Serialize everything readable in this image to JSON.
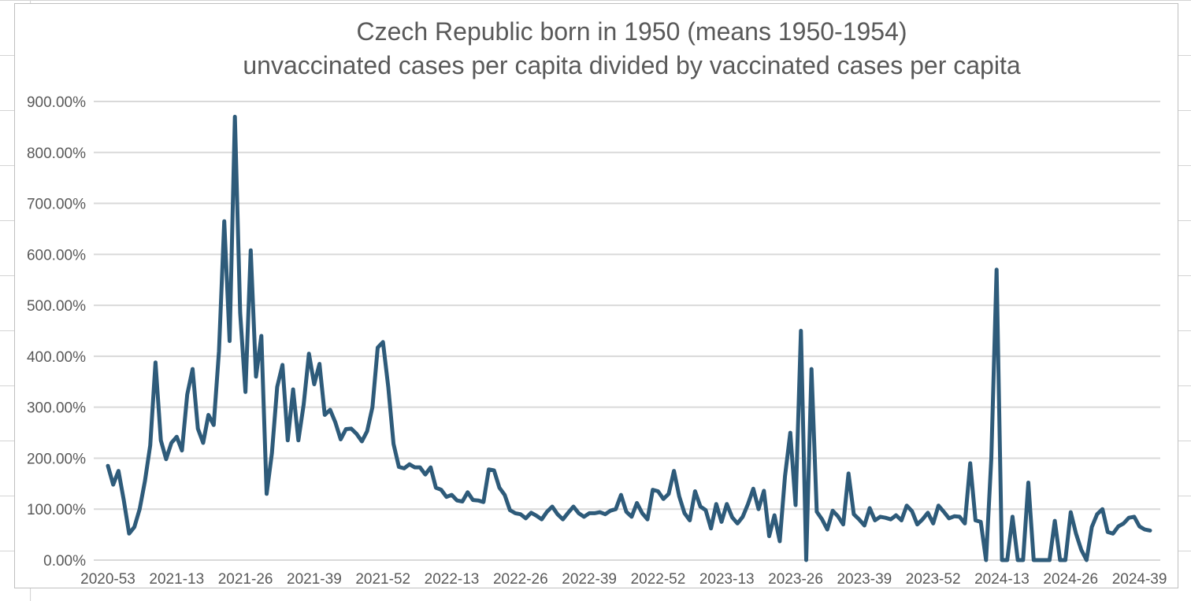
{
  "chart_data": {
    "type": "line",
    "title": "Czech Republic born in 1950 (means 1950-1954)",
    "subtitle": "unvaccinated cases per capita divided by vaccinated cases per capita",
    "xlabel": "",
    "ylabel": "",
    "ylim": [
      0,
      900
    ],
    "yticks": [
      {
        "value": 0,
        "label": "0.00%"
      },
      {
        "value": 100,
        "label": "100.00%"
      },
      {
        "value": 200,
        "label": "200.00%"
      },
      {
        "value": 300,
        "label": "300.00%"
      },
      {
        "value": 400,
        "label": "400.00%"
      },
      {
        "value": 500,
        "label": "500.00%"
      },
      {
        "value": 600,
        "label": "600.00%"
      },
      {
        "value": 700,
        "label": "700.00%"
      },
      {
        "value": 800,
        "label": "800.00%"
      },
      {
        "value": 900,
        "label": "900.00%"
      }
    ],
    "xticks": [
      {
        "index": 0,
        "label": "2020-53"
      },
      {
        "index": 13,
        "label": "2021-13"
      },
      {
        "index": 26,
        "label": "2021-26"
      },
      {
        "index": 39,
        "label": "2021-39"
      },
      {
        "index": 52,
        "label": "2021-52"
      },
      {
        "index": 65,
        "label": "2022-13"
      },
      {
        "index": 78,
        "label": "2022-26"
      },
      {
        "index": 91,
        "label": "2022-39"
      },
      {
        "index": 104,
        "label": "2022-52"
      },
      {
        "index": 117,
        "label": "2023-13"
      },
      {
        "index": 130,
        "label": "2023-26"
      },
      {
        "index": 143,
        "label": "2023-39"
      },
      {
        "index": 156,
        "label": "2023-52"
      },
      {
        "index": 169,
        "label": "2024-13"
      },
      {
        "index": 182,
        "label": "2024-26"
      },
      {
        "index": 195,
        "label": "2024-39"
      }
    ],
    "grid": true,
    "legend": "none",
    "series": [
      {
        "name": "unvaccinated/vaccinated ratio (%)",
        "color": "#2e5b7a",
        "values": [
          185,
          148,
          175,
          118,
          52,
          65,
          100,
          155,
          225,
          388,
          235,
          198,
          230,
          242,
          215,
          325,
          375,
          258,
          230,
          285,
          265,
          410,
          665,
          430,
          870,
          485,
          330,
          608,
          360,
          440,
          130,
          210,
          340,
          383,
          235,
          335,
          235,
          305,
          405,
          345,
          385,
          285,
          295,
          270,
          237,
          257,
          258,
          248,
          233,
          253,
          300,
          417,
          428,
          340,
          228,
          183,
          180,
          188,
          182,
          182,
          168,
          182,
          142,
          138,
          124,
          128,
          117,
          115,
          133,
          118,
          117,
          114,
          178,
          176,
          142,
          128,
          98,
          92,
          90,
          82,
          93,
          87,
          80,
          95,
          105,
          90,
          80,
          93,
          105,
          92,
          85,
          92,
          92,
          94,
          90,
          97,
          100,
          128,
          95,
          85,
          112,
          92,
          80,
          138,
          135,
          120,
          130,
          175,
          125,
          92,
          78,
          135,
          105,
          98,
          62,
          110,
          75,
          110,
          84,
          72,
          85,
          110,
          140,
          100,
          136,
          47,
          88,
          37,
          165,
          250,
          108,
          450,
          0,
          375,
          95,
          80,
          60,
          97,
          86,
          70,
          170,
          90,
          80,
          68,
          102,
          78,
          85,
          83,
          80,
          88,
          78,
          107,
          96,
          70,
          80,
          93,
          72,
          107,
          95,
          82,
          86,
          85,
          72,
          190,
          78,
          75,
          0,
          200,
          570,
          0,
          0,
          85,
          0,
          0,
          152,
          0,
          0,
          0,
          0,
          77,
          0,
          0,
          94,
          52,
          20,
          0,
          65,
          90,
          100,
          55,
          52,
          66,
          72,
          83,
          85,
          66,
          60,
          58
        ]
      }
    ]
  }
}
